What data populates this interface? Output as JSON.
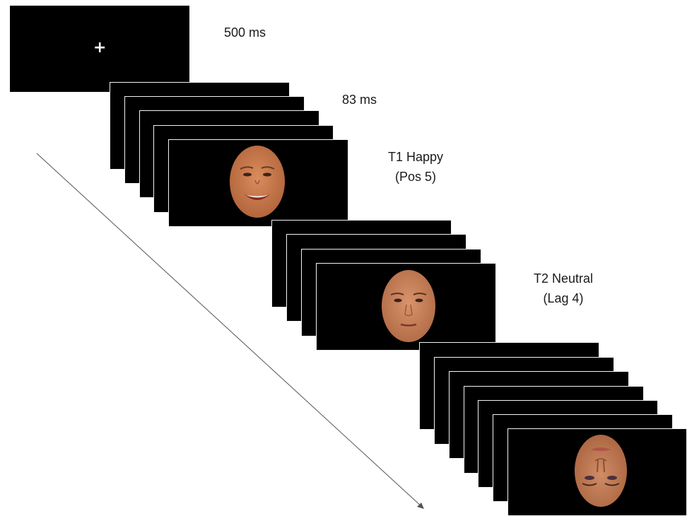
{
  "diagram": {
    "fixation": {
      "duration": "500 ms",
      "symbol": "+"
    },
    "stimulus": {
      "duration": "83 ms"
    },
    "t1": {
      "line1": "T1 Happy",
      "line2": "(Pos 5)"
    },
    "t2": {
      "line1": "T2 Neutral",
      "line2": "(Lag 4)"
    }
  },
  "colors": {
    "background": "#ffffff",
    "frame": "#000000",
    "skin_happy": "#c97a4e",
    "skin_neutral": "#c9855f",
    "skin_inverted": "#bd7a58",
    "arrow": "#555555"
  }
}
